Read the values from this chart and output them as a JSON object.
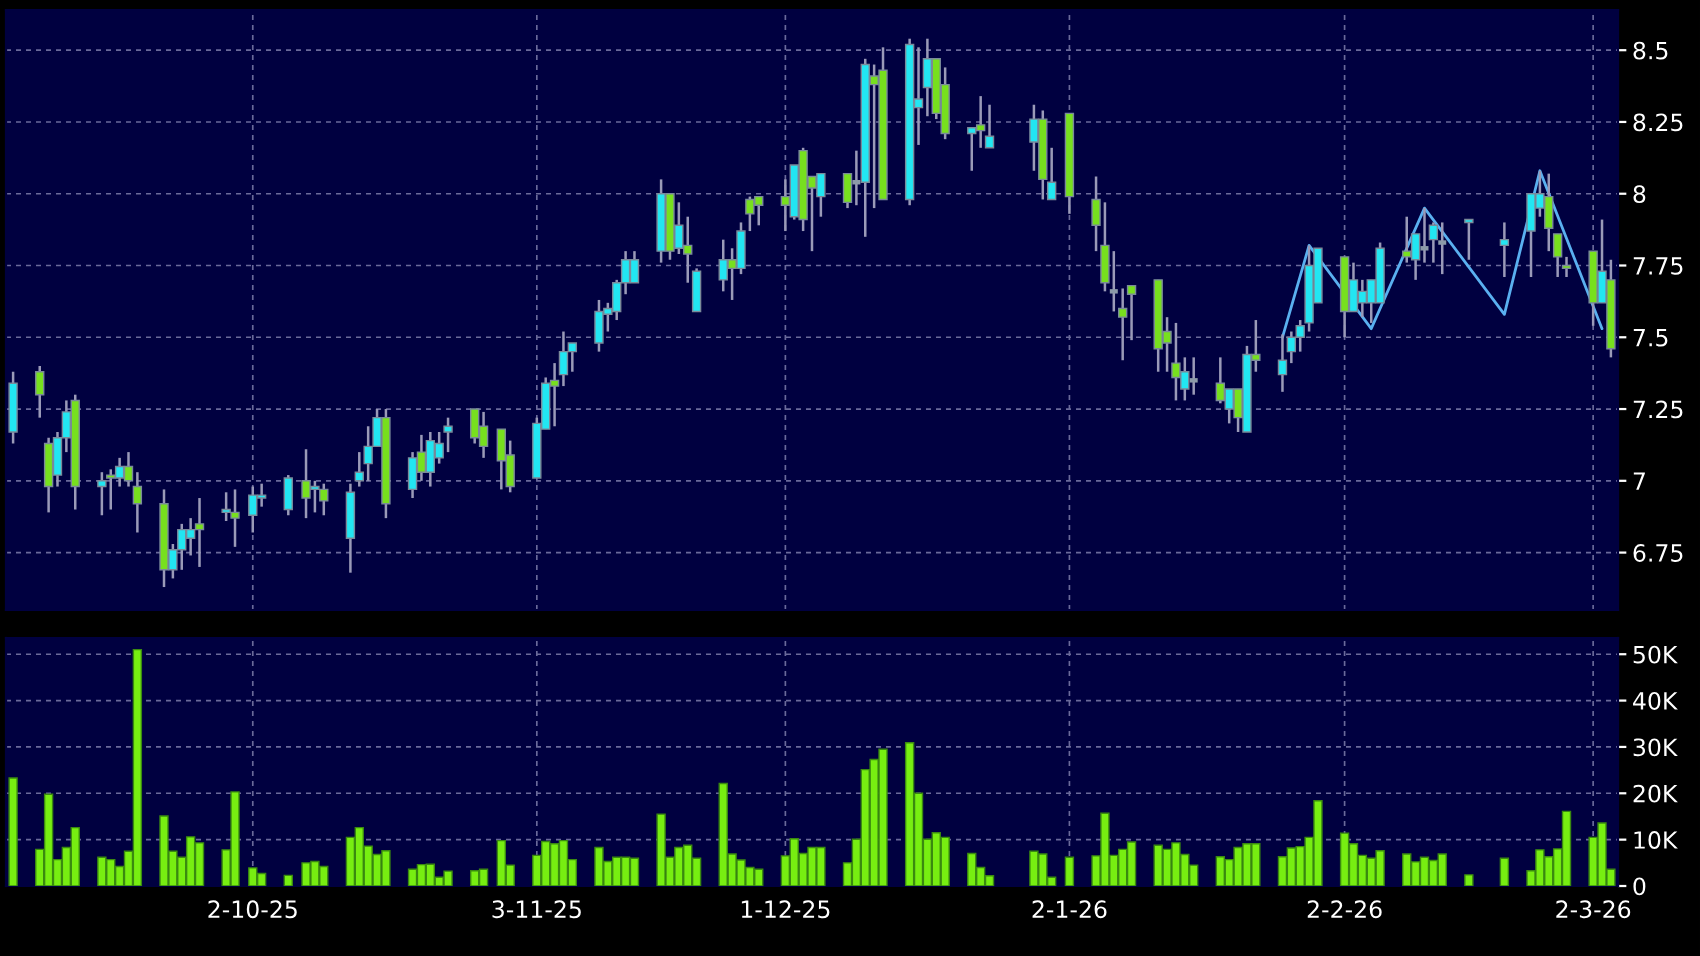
{
  "chart_data": [
    {
      "type": "candlestick",
      "x": [
        "2025-09-05",
        "2025-09-08",
        "2025-09-09",
        "2025-09-10",
        "2025-09-11",
        "2025-09-12",
        "2025-09-15",
        "2025-09-16",
        "2025-09-17",
        "2025-09-18",
        "2025-09-19",
        "2025-09-22",
        "2025-09-23",
        "2025-09-24",
        "2025-09-25",
        "2025-09-26",
        "2025-09-29",
        "2025-09-30",
        "2025-10-02",
        "2025-10-03",
        "2025-10-06",
        "2025-10-08",
        "2025-10-09",
        "2025-10-10",
        "2025-10-13",
        "2025-10-14",
        "2025-10-15",
        "2025-10-16",
        "2025-10-17",
        "2025-10-20",
        "2025-10-21",
        "2025-10-22",
        "2025-10-23",
        "2025-10-24",
        "2025-10-27",
        "2025-10-28",
        "2025-10-30",
        "2025-10-31",
        "2025-11-03",
        "2025-11-04",
        "2025-11-05",
        "2025-11-06",
        "2025-11-07",
        "2025-11-10",
        "2025-11-11",
        "2025-11-12",
        "2025-11-13",
        "2025-11-14",
        "2025-11-17",
        "2025-11-18",
        "2025-11-19",
        "2025-11-20",
        "2025-11-21",
        "2025-11-24",
        "2025-11-25",
        "2025-11-26",
        "2025-11-27",
        "2025-11-28",
        "2025-12-01",
        "2025-12-02",
        "2025-12-03",
        "2025-12-04",
        "2025-12-05",
        "2025-12-08",
        "2025-12-09",
        "2025-12-10",
        "2025-12-11",
        "2025-12-12",
        "2025-12-15",
        "2025-12-16",
        "2025-12-17",
        "2025-12-18",
        "2025-12-19",
        "2025-12-22",
        "2025-12-23",
        "2025-12-24",
        "2025-12-29",
        "2025-12-30",
        "2025-12-31",
        "2026-01-02",
        "2026-01-05",
        "2026-01-06",
        "2026-01-07",
        "2026-01-08",
        "2026-01-09",
        "2026-01-12",
        "2026-01-13",
        "2026-01-14",
        "2026-01-15",
        "2026-01-16",
        "2026-01-19",
        "2026-01-20",
        "2026-01-21",
        "2026-01-22",
        "2026-01-23",
        "2026-01-26",
        "2026-01-27",
        "2026-01-28",
        "2026-01-29",
        "2026-01-30",
        "2026-02-02",
        "2026-02-03",
        "2026-02-04",
        "2026-02-05",
        "2026-02-06",
        "2026-02-09",
        "2026-02-10",
        "2026-02-11",
        "2026-02-12",
        "2026-02-13",
        "2026-02-16",
        "2026-02-20",
        "2026-02-23",
        "2026-02-24",
        "2026-02-25",
        "2026-02-26",
        "2026-02-27",
        "2026-03-02",
        "2026-03-03",
        "2026-03-04"
      ],
      "ohlc": [
        [
          7.17,
          7.38,
          7.13,
          7.34
        ],
        [
          7.38,
          7.4,
          7.22,
          7.3
        ],
        [
          7.13,
          7.15,
          6.89,
          6.98
        ],
        [
          7.02,
          7.17,
          6.98,
          7.15
        ],
        [
          7.15,
          7.28,
          7.1,
          7.24
        ],
        [
          7.28,
          7.3,
          6.9,
          6.98
        ],
        [
          6.98,
          7.03,
          6.88,
          7.0
        ],
        [
          7.02,
          7.04,
          6.9,
          7.01
        ],
        [
          7.01,
          7.08,
          6.98,
          7.05
        ],
        [
          7.05,
          7.1,
          6.98,
          7.0
        ],
        [
          6.98,
          7.03,
          6.82,
          6.92
        ],
        [
          6.92,
          6.97,
          6.63,
          6.69
        ],
        [
          6.69,
          6.78,
          6.66,
          6.76
        ],
        [
          6.76,
          6.85,
          6.69,
          6.83
        ],
        [
          6.8,
          6.87,
          6.74,
          6.83
        ],
        [
          6.85,
          6.94,
          6.7,
          6.83
        ],
        [
          6.89,
          6.96,
          6.86,
          6.9
        ],
        [
          6.89,
          6.97,
          6.77,
          6.87
        ],
        [
          6.88,
          6.98,
          6.82,
          6.95
        ],
        [
          6.94,
          6.99,
          6.91,
          6.95
        ],
        [
          6.9,
          7.02,
          6.88,
          7.01
        ],
        [
          7.0,
          7.11,
          6.87,
          6.94
        ],
        [
          6.97,
          7.0,
          6.89,
          6.98
        ],
        [
          6.97,
          6.99,
          6.88,
          6.93
        ],
        [
          6.8,
          6.99,
          6.68,
          6.96
        ],
        [
          7.0,
          7.1,
          6.98,
          7.03
        ],
        [
          7.06,
          7.19,
          7.0,
          7.12
        ],
        [
          7.12,
          7.25,
          7.12,
          7.22
        ],
        [
          7.22,
          7.25,
          6.87,
          6.92
        ],
        [
          6.97,
          7.1,
          6.94,
          7.08
        ],
        [
          7.1,
          7.16,
          7.0,
          7.03
        ],
        [
          7.03,
          7.17,
          6.98,
          7.14
        ],
        [
          7.08,
          7.17,
          7.06,
          7.13
        ],
        [
          7.17,
          7.22,
          7.1,
          7.19
        ],
        [
          7.25,
          7.25,
          7.13,
          7.15
        ],
        [
          7.19,
          7.24,
          7.08,
          7.12
        ],
        [
          7.18,
          7.18,
          6.97,
          7.07
        ],
        [
          7.09,
          7.14,
          6.96,
          6.98
        ],
        [
          7.01,
          7.22,
          7.01,
          7.2
        ],
        [
          7.18,
          7.36,
          7.18,
          7.34
        ],
        [
          7.35,
          7.41,
          7.19,
          7.33
        ],
        [
          7.37,
          7.52,
          7.33,
          7.45
        ],
        [
          7.45,
          7.48,
          7.38,
          7.48
        ],
        [
          7.48,
          7.63,
          7.45,
          7.59
        ],
        [
          7.58,
          7.62,
          7.52,
          7.6
        ],
        [
          7.59,
          7.7,
          7.56,
          7.69
        ],
        [
          7.69,
          7.8,
          7.65,
          7.77
        ],
        [
          7.69,
          7.8,
          7.69,
          7.77
        ],
        [
          7.8,
          8.05,
          7.76,
          8.0
        ],
        [
          8.0,
          8.0,
          7.77,
          7.8
        ],
        [
          7.81,
          7.97,
          7.79,
          7.89
        ],
        [
          7.82,
          7.92,
          7.69,
          7.79
        ],
        [
          7.59,
          7.74,
          7.59,
          7.73
        ],
        [
          7.7,
          7.84,
          7.66,
          7.77
        ],
        [
          7.77,
          7.81,
          7.63,
          7.74
        ],
        [
          7.74,
          7.9,
          7.72,
          7.87
        ],
        [
          7.98,
          7.99,
          7.87,
          7.93
        ],
        [
          7.99,
          7.99,
          7.89,
          7.96
        ],
        [
          7.99,
          8.05,
          7.87,
          7.96
        ],
        [
          7.92,
          8.1,
          7.91,
          8.1
        ],
        [
          8.15,
          8.16,
          7.87,
          7.91
        ],
        [
          8.06,
          8.06,
          7.8,
          8.02
        ],
        [
          7.99,
          8.07,
          7.92,
          8.07
        ],
        [
          8.07,
          8.07,
          7.95,
          7.97
        ],
        [
          8.04,
          8.15,
          7.96,
          8.04
        ],
        [
          8.04,
          8.47,
          7.85,
          8.45
        ],
        [
          8.41,
          8.45,
          7.95,
          8.38
        ],
        [
          8.43,
          8.51,
          7.98,
          7.98
        ],
        [
          7.98,
          8.54,
          7.96,
          8.52
        ],
        [
          8.3,
          8.51,
          8.17,
          8.33
        ],
        [
          8.37,
          8.54,
          8.27,
          8.47
        ],
        [
          8.47,
          8.47,
          8.26,
          8.28
        ],
        [
          8.38,
          8.44,
          8.19,
          8.21
        ],
        [
          8.21,
          8.23,
          8.08,
          8.23
        ],
        [
          8.24,
          8.34,
          8.16,
          8.22
        ],
        [
          8.16,
          8.31,
          8.16,
          8.2
        ],
        [
          8.18,
          8.31,
          8.08,
          8.26
        ],
        [
          8.26,
          8.29,
          7.98,
          8.05
        ],
        [
          7.98,
          8.16,
          7.98,
          8.04
        ],
        [
          8.28,
          8.28,
          7.93,
          7.99
        ],
        [
          7.98,
          8.06,
          7.8,
          7.89
        ],
        [
          7.82,
          7.97,
          7.66,
          7.69
        ],
        [
          7.66,
          7.8,
          7.59,
          7.66
        ],
        [
          7.6,
          7.67,
          7.42,
          7.57
        ],
        [
          7.68,
          7.68,
          7.49,
          7.65
        ],
        [
          7.7,
          7.7,
          7.38,
          7.46
        ],
        [
          7.52,
          7.57,
          7.38,
          7.48
        ],
        [
          7.41,
          7.55,
          7.28,
          7.36
        ],
        [
          7.32,
          7.43,
          7.28,
          7.38
        ],
        [
          7.35,
          7.43,
          7.3,
          7.35
        ],
        [
          7.34,
          7.43,
          7.27,
          7.28
        ],
        [
          7.25,
          7.32,
          7.2,
          7.32
        ],
        [
          7.32,
          7.32,
          7.17,
          7.22
        ],
        [
          7.17,
          7.47,
          7.17,
          7.44
        ],
        [
          7.44,
          7.56,
          7.38,
          7.42
        ],
        [
          7.37,
          7.51,
          7.31,
          7.42
        ],
        [
          7.45,
          7.52,
          7.41,
          7.5
        ],
        [
          7.5,
          7.56,
          7.45,
          7.54
        ],
        [
          7.55,
          7.82,
          7.52,
          7.75
        ],
        [
          7.62,
          7.81,
          7.62,
          7.81
        ],
        [
          7.78,
          7.78,
          7.5,
          7.59
        ],
        [
          7.59,
          7.76,
          7.59,
          7.7
        ],
        [
          7.62,
          7.7,
          7.57,
          7.66
        ],
        [
          7.62,
          7.7,
          7.55,
          7.7
        ],
        [
          7.62,
          7.83,
          7.62,
          7.81
        ],
        [
          7.8,
          7.92,
          7.76,
          7.78
        ],
        [
          7.77,
          7.86,
          7.7,
          7.86
        ],
        [
          7.81,
          7.95,
          7.76,
          7.81
        ],
        [
          7.84,
          7.9,
          7.76,
          7.89
        ],
        [
          7.83,
          7.9,
          7.72,
          7.83
        ],
        [
          7.9,
          7.91,
          7.77,
          7.91
        ],
        [
          7.82,
          7.9,
          7.71,
          7.84
        ],
        [
          7.87,
          8.0,
          7.71,
          8.0
        ],
        [
          7.95,
          8.08,
          7.92,
          8.0
        ],
        [
          7.99,
          8.07,
          7.8,
          7.88
        ],
        [
          7.86,
          7.86,
          7.71,
          7.78
        ],
        [
          7.75,
          7.78,
          7.71,
          7.74
        ],
        [
          7.8,
          7.8,
          7.54,
          7.62
        ],
        [
          7.62,
          7.91,
          7.62,
          7.73
        ],
        [
          7.7,
          7.77,
          7.43,
          7.46
        ]
      ],
      "colors": [
        "#22e6f2",
        "#77e01e",
        "#77e01e",
        "#22e6f2",
        "#22e6f2",
        "#77e01e",
        "#22e6f2",
        "#77e01e",
        "#22e6f2",
        "#77e01e",
        "#77e01e",
        "#77e01e",
        "#22e6f2",
        "#22e6f2",
        "#22e6f2",
        "#77e01e",
        "#22e6f2",
        "#77e01e",
        "#22e6f2",
        "#22e6f2",
        "#22e6f2",
        "#77e01e",
        "#22e6f2",
        "#77e01e",
        "#22e6f2",
        "#22e6f2",
        "#22e6f2",
        "#22e6f2",
        "#77e01e",
        "#22e6f2",
        "#77e01e",
        "#22e6f2",
        "#22e6f2",
        "#22e6f2",
        "#77e01e",
        "#77e01e",
        "#77e01e",
        "#77e01e",
        "#22e6f2",
        "#22e6f2",
        "#77e01e",
        "#22e6f2",
        "#22e6f2",
        "#22e6f2",
        "#22e6f2",
        "#22e6f2",
        "#22e6f2",
        "#22e6f2",
        "#22e6f2",
        "#77e01e",
        "#22e6f2",
        "#77e01e",
        "#22e6f2",
        "#22e6f2",
        "#77e01e",
        "#22e6f2",
        "#77e01e",
        "#77e01e",
        "#77e01e",
        "#22e6f2",
        "#77e01e",
        "#77e01e",
        "#22e6f2",
        "#77e01e",
        "#8c9aa8",
        "#22e6f2",
        "#77e01e",
        "#77e01e",
        "#22e6f2",
        "#22e6f2",
        "#22e6f2",
        "#77e01e",
        "#77e01e",
        "#22e6f2",
        "#77e01e",
        "#22e6f2",
        "#22e6f2",
        "#77e01e",
        "#22e6f2",
        "#77e01e",
        "#77e01e",
        "#77e01e",
        "#8c9aa8",
        "#77e01e",
        "#77e01e",
        "#77e01e",
        "#77e01e",
        "#77e01e",
        "#22e6f2",
        "#8c9aa8",
        "#77e01e",
        "#22e6f2",
        "#77e01e",
        "#22e6f2",
        "#77e01e",
        "#22e6f2",
        "#22e6f2",
        "#22e6f2",
        "#22e6f2",
        "#22e6f2",
        "#77e01e",
        "#22e6f2",
        "#22e6f2",
        "#22e6f2",
        "#22e6f2",
        "#77e01e",
        "#22e6f2",
        "#8c9aa8",
        "#22e6f2",
        "#8c9aa8",
        "#22e6f2",
        "#22e6f2",
        "#22e6f2",
        "#22e6f2",
        "#77e01e",
        "#77e01e",
        "#77e01e",
        "#77e01e",
        "#22e6f2",
        "#77e01e"
      ],
      "series": [
        {
          "type": "line",
          "color": "#5ab0f0",
          "x": [
            "2026-01-26",
            "2026-01-29",
            "2026-02-05",
            "2026-02-11",
            "2026-02-20",
            "2026-02-24",
            "2026-03-03"
          ],
          "values": [
            7.5,
            7.82,
            7.53,
            7.95,
            7.58,
            8.08,
            7.53
          ]
        }
      ],
      "xlim": [
        "2025-09-05",
        "2026-03-04"
      ],
      "xticks": [
        {
          "value": "2025-10-02",
          "label": null
        },
        {
          "value": "2025-11-03",
          "label": null
        },
        {
          "value": "2025-12-01",
          "label": null
        },
        {
          "value": "2026-01-02",
          "label": null
        },
        {
          "value": "2026-02-02",
          "label": null
        },
        {
          "value": "2026-03-02",
          "label": null
        }
      ],
      "ylim": [
        6.55,
        8.64
      ],
      "yticks": [
        6.75,
        7,
        7.25,
        7.5,
        7.75,
        8,
        8.25,
        8.5
      ],
      "grid": true,
      "tick_labels": "y"
    },
    {
      "type": "bar",
      "x": [
        "2025-09-05",
        "2025-09-08",
        "2025-09-09",
        "2025-09-10",
        "2025-09-11",
        "2025-09-12",
        "2025-09-15",
        "2025-09-16",
        "2025-09-17",
        "2025-09-18",
        "2025-09-19",
        "2025-09-22",
        "2025-09-23",
        "2025-09-24",
        "2025-09-25",
        "2025-09-26",
        "2025-09-29",
        "2025-09-30",
        "2025-10-02",
        "2025-10-03",
        "2025-10-06",
        "2025-10-08",
        "2025-10-09",
        "2025-10-10",
        "2025-10-13",
        "2025-10-14",
        "2025-10-15",
        "2025-10-16",
        "2025-10-17",
        "2025-10-20",
        "2025-10-21",
        "2025-10-22",
        "2025-10-23",
        "2025-10-24",
        "2025-10-27",
        "2025-10-28",
        "2025-10-30",
        "2025-10-31",
        "2025-11-03",
        "2025-11-04",
        "2025-11-05",
        "2025-11-06",
        "2025-11-07",
        "2025-11-10",
        "2025-11-11",
        "2025-11-12",
        "2025-11-13",
        "2025-11-14",
        "2025-11-17",
        "2025-11-18",
        "2025-11-19",
        "2025-11-20",
        "2025-11-21",
        "2025-11-24",
        "2025-11-25",
        "2025-11-26",
        "2025-11-27",
        "2025-11-28",
        "2025-12-01",
        "2025-12-02",
        "2025-12-03",
        "2025-12-04",
        "2025-12-05",
        "2025-12-08",
        "2025-12-09",
        "2025-12-10",
        "2025-12-11",
        "2025-12-12",
        "2025-12-15",
        "2025-12-16",
        "2025-12-17",
        "2025-12-18",
        "2025-12-19",
        "2025-12-22",
        "2025-12-23",
        "2025-12-24",
        "2025-12-29",
        "2025-12-30",
        "2025-12-31",
        "2026-01-02",
        "2026-01-05",
        "2026-01-06",
        "2026-01-07",
        "2026-01-08",
        "2026-01-09",
        "2026-01-12",
        "2026-01-13",
        "2026-01-14",
        "2026-01-15",
        "2026-01-16",
        "2026-01-19",
        "2026-01-20",
        "2026-01-21",
        "2026-01-22",
        "2026-01-23",
        "2026-01-26",
        "2026-01-27",
        "2026-01-28",
        "2026-01-29",
        "2026-01-30",
        "2026-02-02",
        "2026-02-03",
        "2026-02-04",
        "2026-02-05",
        "2026-02-06",
        "2026-02-09",
        "2026-02-10",
        "2026-02-11",
        "2026-02-12",
        "2026-02-13",
        "2026-02-16",
        "2026-02-20",
        "2026-02-23",
        "2026-02-24",
        "2026-02-25",
        "2026-02-26",
        "2026-02-27",
        "2026-03-02",
        "2026-03-03",
        "2026-03-04"
      ],
      "values": [
        23300,
        7900,
        19800,
        5700,
        8300,
        12600,
        6200,
        5700,
        4200,
        7500,
        51000,
        15100,
        7500,
        6200,
        10600,
        9300,
        7800,
        20300,
        3900,
        2700,
        2300,
        5000,
        5300,
        4200,
        10500,
        12600,
        8600,
        6800,
        7600,
        3600,
        4600,
        4700,
        1900,
        3200,
        3300,
        3600,
        9800,
        4500,
        6600,
        9600,
        9100,
        9800,
        5700,
        8300,
        5300,
        6200,
        6200,
        6000,
        15500,
        6200,
        8300,
        8800,
        6000,
        22100,
        6900,
        5600,
        4000,
        3600,
        6500,
        10200,
        7000,
        8300,
        8300,
        5000,
        10100,
        25100,
        27300,
        29500,
        30900,
        20000,
        10100,
        11500,
        10500,
        7000,
        4000,
        2200,
        7500,
        6900,
        1900,
        6200,
        6500,
        15700,
        6600,
        7900,
        9500,
        8800,
        7900,
        9300,
        6800,
        4500,
        6300,
        5700,
        8300,
        9100,
        9100,
        6300,
        8200,
        8500,
        10500,
        18400,
        11400,
        9100,
        6600,
        6000,
        7600,
        6900,
        5200,
        6200,
        5500,
        6900,
        2400,
        6000,
        3300,
        7800,
        6300,
        8000,
        16100,
        10500,
        13600,
        3600
      ],
      "color": "#77ee11",
      "xlim": [
        "2025-09-05",
        "2026-03-04"
      ],
      "xticks": [
        {
          "value": "2025-10-02",
          "label": "2-10-25"
        },
        {
          "value": "2025-11-03",
          "label": "3-11-25"
        },
        {
          "value": "2025-12-01",
          "label": "1-12-25"
        },
        {
          "value": "2026-01-02",
          "label": "2-1-26"
        },
        {
          "value": "2026-02-02",
          "label": "2-2-26"
        },
        {
          "value": "2026-03-02",
          "label": "2-3-26"
        }
      ],
      "ylim": [
        0,
        53500
      ],
      "yticks": [
        0,
        {
          "value": 10000,
          "label": "10K"
        },
        {
          "value": 20000,
          "label": "20K"
        },
        {
          "value": 30000,
          "label": "30K"
        },
        {
          "value": 40000,
          "label": "40K"
        },
        {
          "value": 50000,
          "label": "50K"
        }
      ],
      "grid": true
    }
  ]
}
